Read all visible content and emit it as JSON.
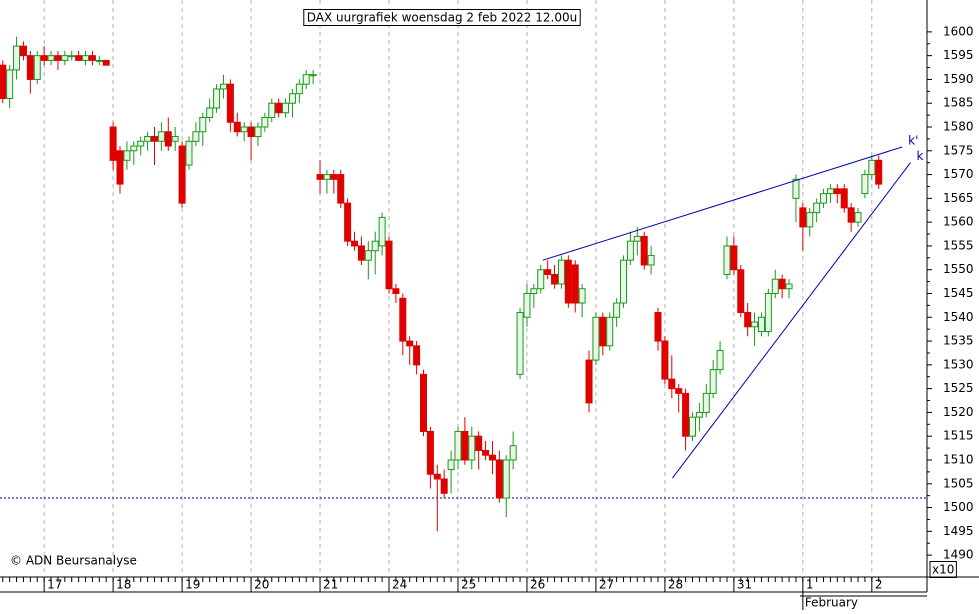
{
  "chart_data": {
    "type": "candlestick",
    "title": "DAX uurgrafiek woensdag 2 feb 2022 12.00u",
    "source": "© ADN Beursanalyse",
    "x_axis_note": "x10",
    "up_color": "#1a9a1a",
    "down_color": "#e00000",
    "x": [
      0,
      1,
      2,
      3,
      4,
      5,
      6,
      7,
      8,
      9,
      10,
      11,
      12,
      13,
      14,
      15,
      16,
      17,
      18,
      19,
      20,
      21,
      22,
      23,
      24,
      25,
      26,
      27,
      28,
      29,
      30,
      31,
      32,
      33,
      34,
      35,
      36,
      37,
      38,
      39,
      40,
      41,
      42,
      43,
      44,
      45,
      46,
      47,
      48,
      49,
      50,
      51,
      52,
      53,
      54,
      55,
      56,
      57,
      58,
      59,
      60,
      61,
      62,
      63,
      64,
      65,
      66,
      67,
      68,
      69,
      70,
      71,
      72,
      73,
      74,
      75,
      76,
      77,
      78,
      79,
      80,
      81,
      82,
      83,
      84,
      85,
      86,
      87,
      88,
      89,
      90,
      91,
      92,
      93,
      94,
      95,
      96,
      97,
      98,
      99,
      100,
      101,
      102,
      103,
      104,
      105,
      106,
      107,
      108,
      109,
      110,
      111,
      112,
      113,
      114,
      115,
      116,
      117,
      118,
      119,
      120,
      121,
      122,
      123,
      124,
      125,
      126,
      127
    ],
    "open": [
      1593,
      1586,
      1592,
      1597,
      1595,
      1590,
      1595,
      1594,
      1595,
      1594,
      1595,
      1595,
      1594,
      1595,
      1594,
      1594,
      1580,
      1575,
      1573,
      1575,
      1576,
      1577,
      1578,
      1577,
      1579,
      1577,
      1576,
      1572,
      1577,
      1579,
      1582,
      1584,
      1588,
      1589,
      1581,
      1579,
      1580,
      1578,
      1580,
      1582,
      1585,
      1583,
      1585,
      1587,
      1589,
      1591,
      1570,
      1569,
      1570,
      1570,
      1564,
      1556,
      1555,
      1552,
      1554,
      1555,
      1556,
      1546,
      1544,
      1535,
      1534,
      1528,
      1516,
      1507,
      1506,
      1508,
      1510,
      1516,
      1510,
      1515,
      1512,
      1511,
      1510,
      1502,
      1510,
      1528,
      1540,
      1545,
      1546,
      1550,
      1549,
      1547,
      1552,
      1551,
      1543,
      1531,
      1531,
      1540,
      1534,
      1540,
      1543,
      1552,
      1556,
      1557,
      1551,
      1541,
      1535,
      1527,
      1525,
      1524,
      1515,
      1519,
      1520,
      1524,
      1529,
      1549,
      1555,
      1550,
      1541,
      1538,
      1537,
      1537,
      1545,
      1548,
      1546,
      1565,
      1563,
      1559,
      1562,
      1564,
      1566,
      1567,
      1567,
      1563,
      1560,
      1566,
      1570,
      1573
    ],
    "high": [
      1594,
      1593,
      1599,
      1598,
      1596,
      1596,
      1597,
      1596,
      1596,
      1596,
      1596,
      1596,
      1596,
      1596,
      1595,
      1594,
      1581,
      1576,
      1577,
      1577,
      1578,
      1579,
      1580,
      1581,
      1582,
      1580,
      1577,
      1578,
      1581,
      1583,
      1586,
      1589,
      1591,
      1590,
      1583,
      1581,
      1581,
      1581,
      1583,
      1586,
      1586,
      1586,
      1588,
      1590,
      1592,
      1592,
      1573,
      1571,
      1571,
      1571,
      1565,
      1558,
      1557,
      1556,
      1558,
      1562,
      1557,
      1547,
      1545,
      1536,
      1535,
      1529,
      1517,
      1509,
      1508,
      1512,
      1517,
      1519,
      1517,
      1516,
      1514,
      1514,
      1512,
      1511,
      1516,
      1542,
      1547,
      1547,
      1551,
      1552,
      1551,
      1553,
      1553,
      1552,
      1547,
      1533,
      1541,
      1541,
      1541,
      1544,
      1553,
      1558,
      1559,
      1558,
      1555,
      1542,
      1536,
      1532,
      1526,
      1525,
      1520,
      1522,
      1526,
      1531,
      1535,
      1557,
      1557,
      1551,
      1543,
      1541,
      1541,
      1546,
      1550,
      1549,
      1548,
      1570,
      1564,
      1563,
      1565,
      1567,
      1568,
      1568,
      1568,
      1564,
      1563,
      1571,
      1574,
      1574
    ],
    "low": [
      1585,
      1584,
      1590,
      1594,
      1587,
      1589,
      1593,
      1593,
      1592,
      1593,
      1594,
      1594,
      1593,
      1593,
      1593,
      1593,
      1571,
      1566,
      1571,
      1572,
      1574,
      1575,
      1572,
      1575,
      1575,
      1575,
      1563,
      1571,
      1576,
      1576,
      1581,
      1583,
      1586,
      1579,
      1578,
      1577,
      1573,
      1576,
      1579,
      1581,
      1582,
      1582,
      1582,
      1585,
      1588,
      1589,
      1566,
      1566,
      1566,
      1563,
      1555,
      1554,
      1551,
      1548,
      1549,
      1553,
      1545,
      1543,
      1532,
      1530,
      1528,
      1515,
      1504,
      1495,
      1502,
      1503,
      1508,
      1509,
      1508,
      1508,
      1510,
      1507,
      1501,
      1498,
      1508,
      1527,
      1538,
      1542,
      1545,
      1548,
      1546,
      1546,
      1542,
      1541,
      1540,
      1520,
      1530,
      1532,
      1533,
      1538,
      1542,
      1551,
      1553,
      1550,
      1549,
      1533,
      1526,
      1523,
      1520,
      1512,
      1514,
      1516,
      1519,
      1523,
      1528,
      1548,
      1549,
      1540,
      1536,
      1534,
      1536,
      1536,
      1544,
      1544,
      1544,
      1560,
      1554,
      1557,
      1560,
      1563,
      1564,
      1564,
      1562,
      1558,
      1559,
      1565,
      1569,
      1567
    ],
    "close": [
      1586,
      1592,
      1597,
      1595,
      1590,
      1595,
      1594,
      1595,
      1594,
      1595,
      1595,
      1594,
      1595,
      1594,
      1594,
      1593,
      1573,
      1568,
      1575,
      1576,
      1577,
      1578,
      1577,
      1579,
      1576,
      1578,
      1564,
      1577,
      1579,
      1582,
      1584,
      1588,
      1589,
      1581,
      1579,
      1580,
      1578,
      1580,
      1582,
      1585,
      1583,
      1585,
      1587,
      1589,
      1591,
      1591,
      1569,
      1570,
      1569,
      1564,
      1556,
      1555,
      1552,
      1554,
      1556,
      1561,
      1546,
      1545,
      1535,
      1534,
      1530,
      1516,
      1507,
      1506,
      1503,
      1510,
      1516,
      1510,
      1515,
      1512,
      1511,
      1510,
      1502,
      1510,
      1513,
      1541,
      1545,
      1546,
      1550,
      1549,
      1547,
      1552,
      1543,
      1543,
      1546,
      1522,
      1540,
      1534,
      1540,
      1543,
      1552,
      1556,
      1557,
      1551,
      1553,
      1535,
      1527,
      1525,
      1524,
      1515,
      1519,
      1520,
      1524,
      1529,
      1533,
      1555,
      1550,
      1541,
      1538,
      1539,
      1540,
      1545,
      1548,
      1546,
      1547,
      1569,
      1559,
      1562,
      1564,
      1566,
      1567,
      1566,
      1563,
      1560,
      1562,
      1570,
      1573,
      1568
    ],
    "xlim": [
      -0.4,
      134
    ],
    "xticks": [
      {
        "value": 6,
        "label": "17"
      },
      {
        "value": 16,
        "label": "18"
      },
      {
        "value": 26,
        "label": "19"
      },
      {
        "value": 36,
        "label": "20"
      },
      {
        "value": 46,
        "label": "21"
      },
      {
        "value": 56,
        "label": "24"
      },
      {
        "value": 66,
        "label": "25"
      },
      {
        "value": 76,
        "label": "26"
      },
      {
        "value": 86,
        "label": "27"
      },
      {
        "value": 96,
        "label": "28"
      },
      {
        "value": 106,
        "label": "31"
      },
      {
        "value": 116,
        "label": "1"
      },
      {
        "value": 126,
        "label": "2"
      }
    ],
    "xticks2": [
      {
        "value": 116,
        "label": "February"
      }
    ],
    "ylim": [
      1485.4,
      1606.7
    ],
    "yticks": [
      1490,
      1495,
      1500,
      1505,
      1510,
      1515,
      1520,
      1525,
      1530,
      1535,
      1540,
      1545,
      1550,
      1555,
      1560,
      1565,
      1570,
      1575,
      1580,
      1585,
      1590,
      1595,
      1600
    ],
    "hline": {
      "value": 1502,
      "color": "#000080"
    },
    "trendlines": [
      {
        "label": "k'",
        "x": [
          78.3,
          130.4
        ],
        "y": [
          1552.0,
          1575.8
        ],
        "color": "#0000aa"
      },
      {
        "label": "k",
        "x": [
          97.1,
          131.6
        ],
        "y": [
          1506.2,
          1572.5
        ],
        "color": "#0000aa"
      }
    ]
  }
}
